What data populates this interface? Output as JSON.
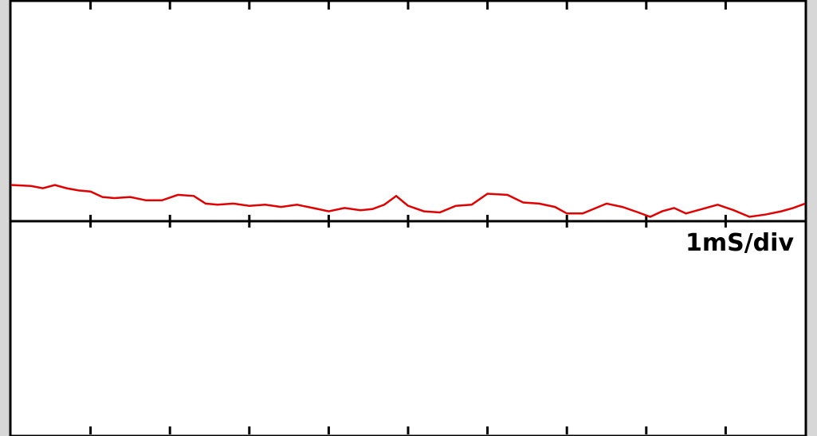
{
  "chart_data": {
    "type": "line",
    "timebase_label": "1mS/div",
    "x_divisions": 10,
    "y_range": [
      -1,
      1
    ],
    "grid": false,
    "series": [
      {
        "color": "#e00000",
        "x": [
          0,
          0.25,
          0.4,
          0.55,
          0.7,
          0.85,
          1.0,
          1.15,
          1.3,
          1.5,
          1.7,
          1.9,
          2.1,
          2.3,
          2.45,
          2.6,
          2.8,
          3.0,
          3.2,
          3.4,
          3.6,
          3.8,
          4.0,
          4.2,
          4.4,
          4.55,
          4.7,
          4.85,
          5.0,
          5.2,
          5.4,
          5.6,
          5.8,
          6.0,
          6.25,
          6.45,
          6.65,
          6.85,
          7.0,
          7.2,
          7.5,
          7.7,
          7.9,
          8.05,
          8.2,
          8.35,
          8.5,
          8.7,
          8.9,
          9.1,
          9.3,
          9.5,
          9.7,
          9.85,
          10.0
        ],
        "y": [
          0.165,
          0.16,
          0.15,
          0.165,
          0.15,
          0.14,
          0.135,
          0.11,
          0.105,
          0.11,
          0.095,
          0.095,
          0.12,
          0.115,
          0.08,
          0.075,
          0.08,
          0.07,
          0.075,
          0.065,
          0.075,
          0.06,
          0.045,
          0.06,
          0.05,
          0.055,
          0.075,
          0.115,
          0.07,
          0.045,
          0.04,
          0.07,
          0.075,
          0.125,
          0.12,
          0.085,
          0.08,
          0.065,
          0.035,
          0.035,
          0.08,
          0.065,
          0.04,
          0.02,
          0.045,
          0.06,
          0.035,
          0.055,
          0.075,
          0.05,
          0.02,
          0.03,
          0.045,
          0.06,
          0.08
        ]
      }
    ]
  }
}
